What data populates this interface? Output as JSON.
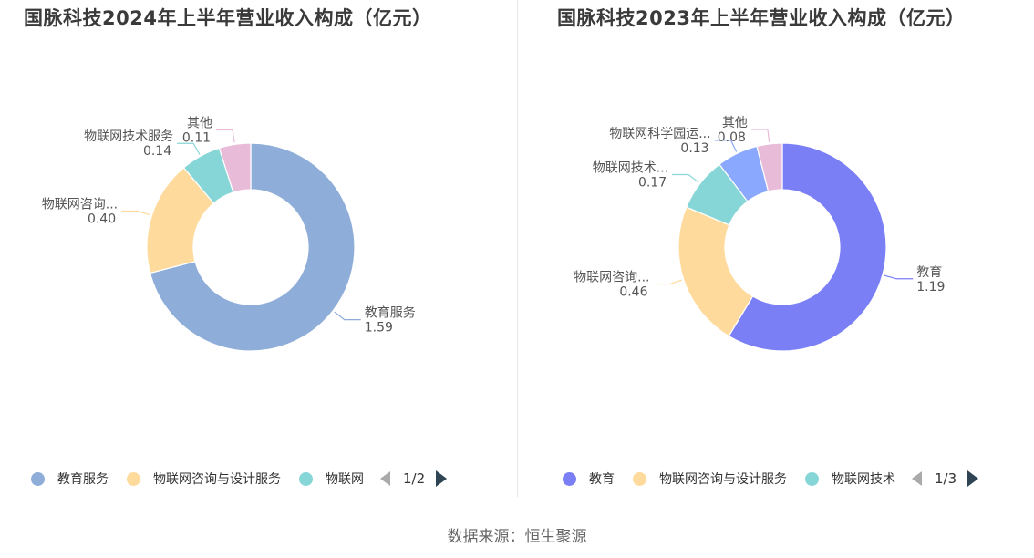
{
  "chart_data": [
    {
      "type": "pie",
      "title": "国脉科技2024年上半年营业收入构成（亿元）",
      "slices": [
        {
          "name": "教育服务",
          "label": "教育服务",
          "value": 1.59,
          "value_label": "1.59",
          "color": "#8eadd8"
        },
        {
          "name": "物联网咨询与设计服务",
          "label": "物联网咨询...",
          "value": 0.4,
          "value_label": "0.40",
          "color": "#fedb9c"
        },
        {
          "name": "物联网技术服务",
          "label": "物联网技术服务",
          "value": 0.14,
          "value_label": "0.14",
          "color": "#87d6d7"
        },
        {
          "name": "其他",
          "label": "其他",
          "value": 0.11,
          "value_label": "0.11",
          "color": "#e8bbd8"
        }
      ],
      "legend": {
        "position": "bottom",
        "items": [
          "教育服务",
          "物联网咨询与设计服务",
          "物联网"
        ],
        "page": "1/2"
      }
    },
    {
      "type": "pie",
      "title": "国脉科技2023年上半年营业收入构成（亿元）",
      "slices": [
        {
          "name": "教育",
          "label": "教育",
          "value": 1.19,
          "value_label": "1.19",
          "color": "#7b7ff5"
        },
        {
          "name": "物联网咨询与设计服务",
          "label": "物联网咨询...",
          "value": 0.46,
          "value_label": "0.46",
          "color": "#fedb9c"
        },
        {
          "name": "物联网技术",
          "label": "物联网技术...",
          "value": 0.17,
          "value_label": "0.17",
          "color": "#87d6d7"
        },
        {
          "name": "物联网科学园运",
          "label": "物联网科学园运...",
          "value": 0.13,
          "value_label": "0.13",
          "color": "#8aa8fd"
        },
        {
          "name": "其他",
          "label": "其他",
          "value": 0.08,
          "value_label": "0.08",
          "color": "#e8bbd8"
        }
      ],
      "legend": {
        "position": "bottom",
        "items": [
          "教育",
          "物联网咨询与设计服务",
          "物联网技术"
        ],
        "page": "1/3"
      }
    }
  ],
  "footer": {
    "source": "数据来源：恒生聚源"
  }
}
